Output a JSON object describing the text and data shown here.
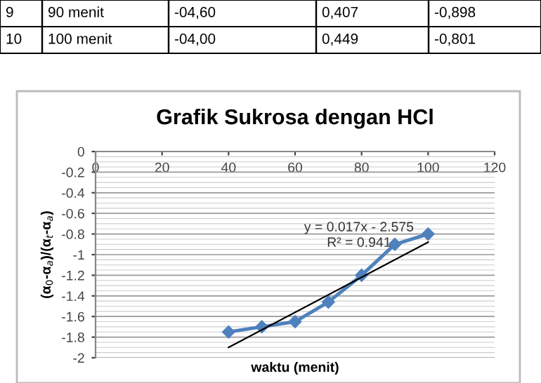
{
  "chart_data": {
    "type": "line",
    "title": "Grafik Sukrosa dengan HCl",
    "xlabel": "waktu (menit)",
    "ylabel": "(α$_{0}$-α$_{a}$)/(α$_{t}$-α$_{a}$)",
    "x": [
      40,
      50,
      60,
      70,
      80,
      90,
      100
    ],
    "series": [
      {
        "color": "#4f81bd",
        "marker": "diamond",
        "values": [
          -1.75,
          -1.7,
          -1.65,
          -1.46,
          -1.2,
          -0.9,
          -0.8
        ]
      },
      {
        "color": "#000000",
        "marker": "none",
        "x": [
          40,
          100
        ],
        "values": [
          -1.9,
          -0.88
        ]
      }
    ],
    "xlim": [
      0,
      120
    ],
    "xticks": [
      0,
      20,
      40,
      60,
      80,
      100,
      120
    ],
    "ylim": [
      -2,
      0
    ],
    "yticks": [
      -2,
      -1.8,
      -1.6,
      -1.4,
      -1.2,
      -1,
      -0.8,
      -0.6,
      -0.4,
      -0.2,
      0
    ],
    "grid": "y",
    "annotations": [
      "9",
      "90 menit",
      "-04,60",
      "0,407",
      "-0,898",
      "10",
      "100 menit",
      "-04,00",
      "0,449",
      "-0,801",
      "y = 0.017x - 2.575",
      "R² = 0.941"
    ]
  }
}
